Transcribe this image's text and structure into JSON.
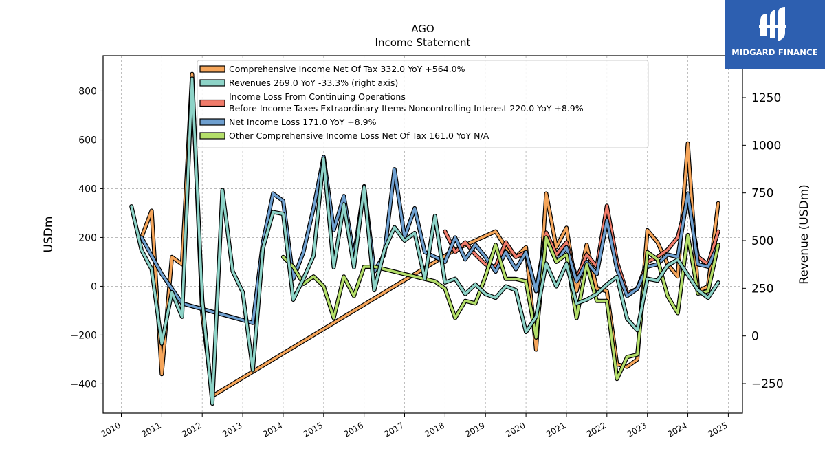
{
  "logo": {
    "text": "MIDGARD FINANCE"
  },
  "chart_data": {
    "type": "line",
    "title": "AGO",
    "subtitle": "Income Statement",
    "ylabel": "USDm",
    "ylabel_right": "Revenue (USDm)",
    "xlim": [
      2009.55,
      2025.35
    ],
    "ylim": [
      -520,
      945
    ],
    "ylim_right": [
      -405,
      1470
    ],
    "xticks": [
      2010,
      2011,
      2012,
      2013,
      2014,
      2015,
      2016,
      2017,
      2018,
      2019,
      2020,
      2021,
      2022,
      2023,
      2024,
      2025
    ],
    "xtick_labels": [
      "2010",
      "2011",
      "2012",
      "2013",
      "2014",
      "2015",
      "2016",
      "2017",
      "2018",
      "2019",
      "2020",
      "2021",
      "2022",
      "2023",
      "2024",
      "2025"
    ],
    "yticks": [
      -400,
      -200,
      0,
      200,
      400,
      600,
      800
    ],
    "ytick_labels": [
      "−400",
      "−200",
      "0",
      "200",
      "400",
      "600",
      "800"
    ],
    "yticks_right": [
      -250,
      0,
      250,
      500,
      750,
      1000,
      1250
    ],
    "ytick_right_labels": [
      "−250",
      "0",
      "250",
      "500",
      "750",
      "1000",
      "1250"
    ],
    "grid": true,
    "legend_position": "top-center",
    "legend": [
      {
        "key": "ci",
        "lines": [
          "Comprehensive Income Net Of Tax  332.0 YoY +564.0%"
        ]
      },
      {
        "key": "rev",
        "lines": [
          "Revenues  269.0 YoY -33.3% (right axis)"
        ]
      },
      {
        "key": "ilco",
        "lines": [
          "Income Loss From Continuing Operations",
          "Before Income Taxes Extraordinary Items Noncontrolling Interest  220.0 YoY +8.9%"
        ]
      },
      {
        "key": "ni",
        "lines": [
          "Net Income Loss  171.0 YoY +8.9%"
        ]
      },
      {
        "key": "oci",
        "lines": [
          "Other Comprehensive Income Loss Net Of Tax  161.0 YoY N/A"
        ]
      }
    ],
    "series": [
      {
        "key": "ci",
        "color": "#f5a55a",
        "axis": "left",
        "x": [
          2010.5,
          2010.75,
          2011.0,
          2011.25,
          2011.5,
          2011.75,
          2012.0,
          2012.25,
          2018.25,
          2019.25,
          2019.5,
          2019.75,
          2020.0,
          2020.25,
          2020.5,
          2020.75,
          2021.0,
          2021.25,
          2021.5,
          2021.75,
          2022.0,
          2022.25,
          2022.5,
          2022.75,
          2023.0,
          2023.25,
          2023.5,
          2023.75,
          2024.0,
          2024.25,
          2024.5,
          2024.75
        ],
        "y": [
          200,
          310,
          -360,
          120,
          90,
          870,
          -110,
          -450,
          150,
          225,
          160,
          120,
          160,
          -260,
          380,
          160,
          240,
          -20,
          170,
          -10,
          -20,
          -320,
          -330,
          -300,
          230,
          180,
          90,
          40,
          585,
          -20,
          0,
          340
        ]
      },
      {
        "key": "ilco",
        "color": "#f07b6a",
        "axis": "left",
        "x": [
          2018.0,
          2018.25,
          2018.5,
          2018.75,
          2019.0,
          2019.25,
          2019.5,
          2019.75,
          2020.0,
          2020.25,
          2020.5,
          2020.75,
          2021.0,
          2021.25,
          2021.5,
          2021.75,
          2022.0,
          2022.25,
          2022.5,
          2022.75,
          2023.0,
          2023.25,
          2023.5,
          2023.75,
          2024.0,
          2024.25,
          2024.5,
          2024.75
        ],
        "y": [
          225,
          140,
          180,
          130,
          90,
          80,
          180,
          120,
          140,
          -20,
          220,
          130,
          180,
          30,
          130,
          80,
          330,
          100,
          -30,
          -10,
          100,
          120,
          150,
          200,
          360,
          120,
          90,
          225
        ]
      },
      {
        "key": "ni",
        "color": "#6e9fcf",
        "axis": "left",
        "x": [
          2010.5,
          2011.0,
          2011.5,
          2013.25,
          2013.5,
          2013.75,
          2014.0,
          2014.25,
          2014.5,
          2014.75,
          2015.0,
          2015.25,
          2015.5,
          2015.75,
          2016.0,
          2016.25,
          2016.5,
          2016.75,
          2017.0,
          2017.25,
          2017.5,
          2018.0,
          2018.25,
          2018.5,
          2018.75,
          2019.0,
          2019.25,
          2019.5,
          2019.75,
          2020.0,
          2020.25,
          2020.5,
          2020.75,
          2021.0,
          2021.25,
          2021.5,
          2021.75,
          2022.0,
          2022.25,
          2022.5,
          2022.75,
          2023.0,
          2023.25,
          2023.5,
          2023.75,
          2024.0,
          2024.25,
          2024.5,
          2024.75
        ],
        "y": [
          200,
          50,
          -70,
          -150,
          180,
          380,
          350,
          30,
          140,
          320,
          530,
          230,
          370,
          120,
          410,
          60,
          130,
          480,
          200,
          320,
          140,
          100,
          200,
          110,
          170,
          120,
          60,
          140,
          70,
          140,
          -20,
          200,
          100,
          160,
          20,
          100,
          50,
          270,
          70,
          -40,
          -10,
          80,
          90,
          130,
          120,
          380,
          90,
          80,
          170
        ]
      },
      {
        "key": "oci",
        "color": "#b3de69",
        "axis": "left",
        "x": [
          2014.0,
          2014.25,
          2014.5,
          2014.75,
          2015.0,
          2015.25,
          2015.5,
          2015.75,
          2016.0,
          2016.25,
          2017.0,
          2017.25,
          2017.5,
          2017.75,
          2018.0,
          2018.25,
          2018.5,
          2018.75,
          2019.0,
          2019.25,
          2019.5,
          2019.75,
          2020.0,
          2020.25,
          2020.5,
          2020.75,
          2021.0,
          2021.25,
          2021.5,
          2021.75,
          2022.0,
          2022.25,
          2022.5,
          2022.75,
          2023.0,
          2023.25,
          2023.5,
          2023.75,
          2024.0,
          2024.25,
          2024.5,
          2024.75
        ],
        "y": [
          120,
          80,
          10,
          40,
          0,
          -130,
          40,
          -40,
          80,
          80,
          50,
          40,
          30,
          20,
          -10,
          -130,
          -60,
          -70,
          40,
          170,
          30,
          30,
          20,
          -210,
          200,
          100,
          130,
          -130,
          90,
          -60,
          -60,
          -380,
          -290,
          -280,
          140,
          110,
          -40,
          -110,
          210,
          -30,
          -20,
          170
        ]
      },
      {
        "key": "rev",
        "color": "#8dd3c7",
        "axis": "right",
        "x": [
          2010.25,
          2010.5,
          2010.75,
          2011.0,
          2011.25,
          2011.5,
          2011.75,
          2012.0,
          2012.25,
          2012.5,
          2012.75,
          2013.0,
          2013.25,
          2013.5,
          2013.75,
          2014.0,
          2014.25,
          2014.5,
          2014.75,
          2015.0,
          2015.25,
          2015.5,
          2015.75,
          2016.0,
          2016.25,
          2016.5,
          2016.75,
          2017.0,
          2017.25,
          2017.5,
          2017.75,
          2018.0,
          2018.25,
          2018.5,
          2018.75,
          2019.0,
          2019.25,
          2019.5,
          2019.75,
          2020.0,
          2020.25,
          2020.5,
          2020.75,
          2021.0,
          2021.25,
          2021.5,
          2021.75,
          2022.0,
          2022.25,
          2022.5,
          2022.75,
          2023.0,
          2023.25,
          2023.5,
          2023.75,
          2024.0,
          2024.25,
          2024.5,
          2024.75
        ],
        "y": [
          680,
          450,
          350,
          -40,
          230,
          100,
          1350,
          190,
          -355,
          765,
          340,
          230,
          -180,
          460,
          650,
          640,
          190,
          300,
          420,
          930,
          360,
          690,
          360,
          780,
          240,
          450,
          570,
          500,
          540,
          300,
          630,
          280,
          300,
          220,
          270,
          220,
          200,
          260,
          240,
          20,
          100,
          380,
          260,
          380,
          170,
          190,
          220,
          270,
          310,
          90,
          30,
          300,
          290,
          370,
          400,
          320,
          240,
          200,
          280
        ]
      }
    ]
  }
}
